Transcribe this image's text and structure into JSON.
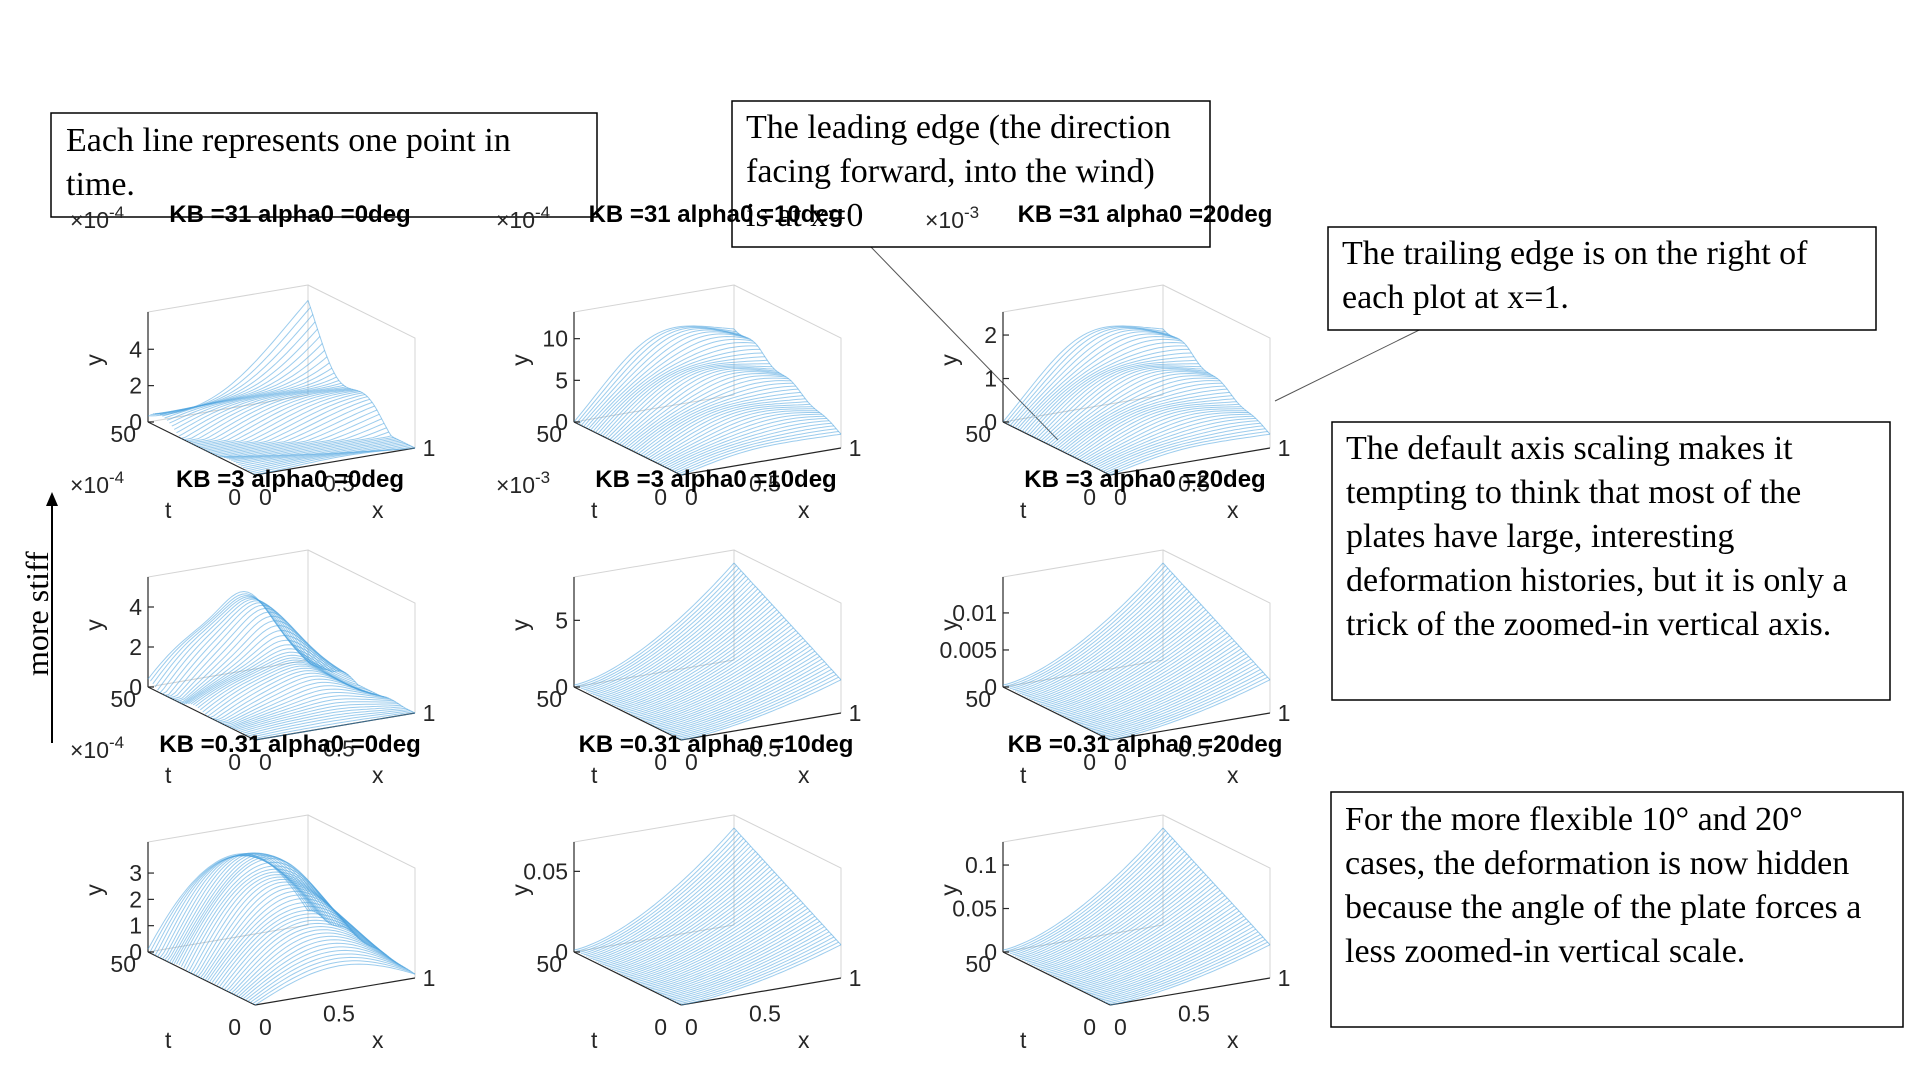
{
  "notes": {
    "each_line": "Each line represents one point in time.",
    "leading_edge": "The leading edge (the direction facing forward, into the wind) is at x=0",
    "trailing_edge": "The trailing edge is on the right of each plot at x=1.",
    "default_scaling": "The default axis scaling makes it tempting to think that most of the plates have large, interesting deformation histories, but it is only a trick of the zoomed-in vertical axis.",
    "flexible": "For the more flexible 10° and 20° cases, the deformation is now hidden because the angle of the plate forces a less zoomed-in vertical scale.",
    "stiff_label": "more stiff"
  },
  "colors": {
    "mesh": "#4aa3df",
    "axis": "#262626",
    "grid": "#d4d4d4"
  },
  "chart_data": [
    {
      "type": "line",
      "title": "KB =31 alpha0 =0deg",
      "xlabel": "x",
      "ylabel": "y",
      "tlabel": "t",
      "xticks": [
        "0",
        "0.5",
        "1"
      ],
      "tticks": [
        "0",
        "50"
      ],
      "yticks": [
        "0",
        "2",
        "4"
      ],
      "exponent": "×10",
      "exponent_power": "-4",
      "ylim": [
        0,
        5.5
      ],
      "shape": "wavy-rise"
    },
    {
      "type": "line",
      "title": "KB =31 alpha0 =10deg",
      "xlabel": "x",
      "ylabel": "y",
      "tlabel": "t",
      "xticks": [
        "0",
        "0.5",
        "1"
      ],
      "tticks": [
        "0",
        "50"
      ],
      "yticks": [
        "0",
        "5",
        "10"
      ],
      "exponent": "×10",
      "exponent_power": "-4",
      "ylim": [
        0,
        12
      ],
      "shape": "hump"
    },
    {
      "type": "line",
      "title": "KB =31 alpha0 =20deg",
      "xlabel": "x",
      "ylabel": "y",
      "tlabel": "t",
      "xticks": [
        "0",
        "0.5",
        "1"
      ],
      "tticks": [
        "0",
        "50"
      ],
      "yticks": [
        "0",
        "1",
        "2"
      ],
      "exponent": "×10",
      "exponent_power": "-3",
      "ylim": [
        0,
        2.3
      ],
      "shape": "hump"
    },
    {
      "type": "line",
      "title": "KB =3 alpha0 =0deg",
      "xlabel": "x",
      "ylabel": "y",
      "tlabel": "t",
      "xticks": [
        "0",
        "0.5",
        "1"
      ],
      "tticks": [
        "0",
        "50"
      ],
      "yticks": [
        "0",
        "2",
        "4"
      ],
      "exponent": "×10",
      "exponent_power": "-4",
      "ylim": [
        0,
        5
      ],
      "shape": "wavy-peak"
    },
    {
      "type": "line",
      "title": "KB =3 alpha0 =10deg",
      "xlabel": "x",
      "ylabel": "y",
      "tlabel": "t",
      "xticks": [
        "0",
        "0.5",
        "1"
      ],
      "tticks": [
        "0",
        "50"
      ],
      "yticks": [
        "0",
        "5"
      ],
      "exponent": "×10",
      "exponent_power": "-3",
      "ylim": [
        0,
        7.5
      ],
      "shape": "ramp"
    },
    {
      "type": "line",
      "title": "KB =3 alpha0 =20deg",
      "xlabel": "x",
      "ylabel": "y",
      "tlabel": "t",
      "xticks": [
        "0",
        "0.5",
        "1"
      ],
      "tticks": [
        "0",
        "50"
      ],
      "yticks": [
        "0",
        "0.005",
        "0.01"
      ],
      "exponent": "",
      "exponent_power": "",
      "ylim": [
        0,
        0.0135
      ],
      "shape": "ramp"
    },
    {
      "type": "line",
      "title": "KB =0.31 alpha0 =0deg",
      "xlabel": "x",
      "ylabel": "y",
      "tlabel": "t",
      "xticks": [
        "0",
        "0.5",
        "1"
      ],
      "tticks": [
        "0",
        "50"
      ],
      "yticks": [
        "0",
        "1",
        "2",
        "3"
      ],
      "exponent": "×10",
      "exponent_power": "-4",
      "ylim": [
        0,
        3.8
      ],
      "shape": "dome"
    },
    {
      "type": "line",
      "title": "KB =0.31 alpha0 =10deg",
      "xlabel": "x",
      "ylabel": "y",
      "tlabel": "t",
      "xticks": [
        "0",
        "0.5",
        "1"
      ],
      "tticks": [
        "0",
        "50"
      ],
      "yticks": [
        "0",
        "0.05"
      ],
      "exponent": "",
      "exponent_power": "",
      "ylim": [
        0,
        0.062
      ],
      "shape": "ramp"
    },
    {
      "type": "line",
      "title": "KB =0.31 alpha0 =20deg",
      "xlabel": "x",
      "ylabel": "y",
      "tlabel": "t",
      "xticks": [
        "0",
        "0.5",
        "1"
      ],
      "tticks": [
        "0",
        "50"
      ],
      "yticks": [
        "0",
        "0.05",
        "0.1"
      ],
      "exponent": "",
      "exponent_power": "",
      "ylim": [
        0,
        0.115
      ],
      "shape": "ramp"
    }
  ]
}
